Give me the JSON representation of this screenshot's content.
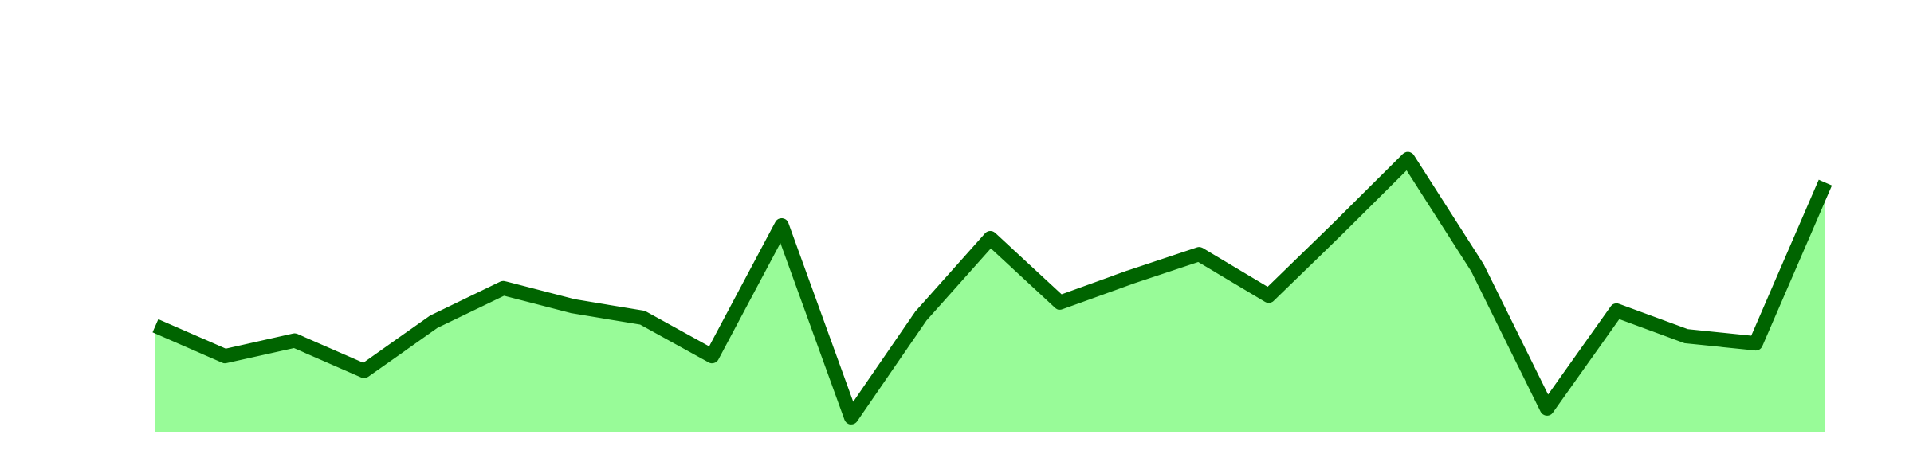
{
  "chart_data": {
    "type": "area",
    "title": "",
    "xlabel": "",
    "ylabel": "",
    "x": [
      1,
      2,
      3,
      4,
      5,
      6,
      7,
      8,
      9,
      10,
      11,
      12,
      13,
      14,
      15,
      16,
      17,
      18,
      19,
      20,
      21,
      22,
      23,
      24,
      25
    ],
    "xlim": [
      1,
      25
    ],
    "ylim": [
      0,
      100
    ],
    "series": [
      {
        "values": [
          26.5,
          18.9,
          22.8,
          15.2,
          27.5,
          35.9,
          31.4,
          28.5,
          18.9,
          51.6,
          3.6,
          28.9,
          48.4,
          32.3,
          38.6,
          44.4,
          34.0,
          50.9,
          68.2,
          41.0,
          5.8,
          30.3,
          23.9,
          22.1,
          62.3
        ],
        "line_color": "#006400",
        "fill_color": "#98fb98"
      }
    ],
    "grid": false,
    "legend": "none"
  }
}
